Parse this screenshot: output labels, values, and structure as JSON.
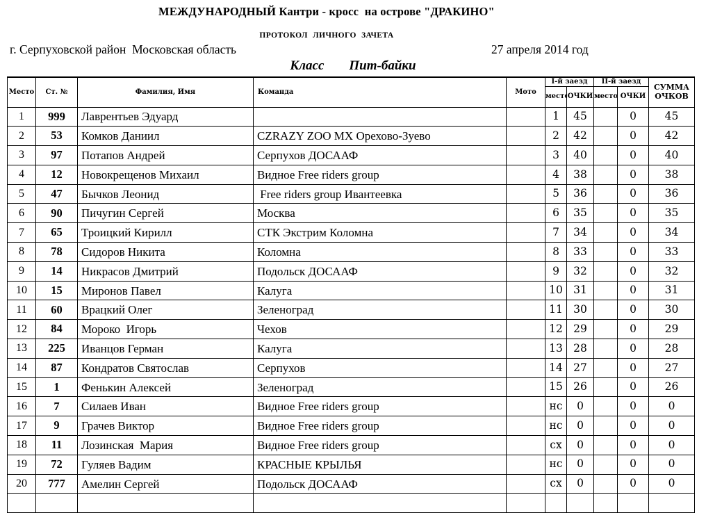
{
  "colors": {
    "text": "#000000",
    "border": "#000000",
    "background": "#ffffff"
  },
  "header": {
    "title": "МЕЖДУНАРОДНЫЙ Кантри - кросс  на острове \"ДРАКИНО\"",
    "subtitle": "ПРОТОКОЛ ЛИЧНОГО ЗАЧЕТА",
    "location": "г. Серпуховской район  Московская область",
    "date": "27 апреля 2014 год",
    "class_label": "Класс",
    "class_value": "Пит-байки"
  },
  "table": {
    "columns": {
      "place": "Место",
      "start_no": "Ст. №",
      "name": "Фамилия, Имя",
      "team": "Команда",
      "moto": "Мото",
      "race1": "I-й заезд",
      "race2": "II-й заезд",
      "sub_place": "место",
      "sub_points": "ОЧКИ",
      "total": "СУММА ОЧКОВ"
    },
    "rows": [
      {
        "place": "1",
        "start_no": "999",
        "name": "Лаврентьев Эдуард",
        "team": "",
        "moto": "",
        "r1_place": "1",
        "r1_points": "45",
        "r2_place": "",
        "r2_points": "0",
        "total": "45"
      },
      {
        "place": "2",
        "start_no": "53",
        "name": "Комков Даниил",
        "team": "CZRAZY ZOO MX Орехово-Зуево",
        "moto": "",
        "r1_place": "2",
        "r1_points": "42",
        "r2_place": "",
        "r2_points": "0",
        "total": "42"
      },
      {
        "place": "3",
        "start_no": "97",
        "name": "Потапов Андрей",
        "team": "Серпухов ДОСААФ",
        "moto": "",
        "r1_place": "3",
        "r1_points": "40",
        "r2_place": "",
        "r2_points": "0",
        "total": "40"
      },
      {
        "place": "4",
        "start_no": "12",
        "name": "Новокрещенов Михаил",
        "team": "Видное Free riders group",
        "moto": "",
        "r1_place": "4",
        "r1_points": "38",
        "r2_place": "",
        "r2_points": "0",
        "total": "38"
      },
      {
        "place": "5",
        "start_no": "47",
        "name": "Бычков Леонид",
        "team": " Free riders group Ивантеевка",
        "moto": "",
        "r1_place": "5",
        "r1_points": "36",
        "r2_place": "",
        "r2_points": "0",
        "total": "36"
      },
      {
        "place": "6",
        "start_no": "90",
        "name": "Пичугин Сергей",
        "team": "Москва",
        "moto": "",
        "r1_place": "6",
        "r1_points": "35",
        "r2_place": "",
        "r2_points": "0",
        "total": "35"
      },
      {
        "place": "7",
        "start_no": "65",
        "name": "Троицкий Кирилл",
        "team": "СТК Экстрим Коломна",
        "moto": "",
        "r1_place": "7",
        "r1_points": "34",
        "r2_place": "",
        "r2_points": "0",
        "total": "34"
      },
      {
        "place": "8",
        "start_no": "78",
        "name": "Сидоров Никита",
        "team": "Коломна",
        "moto": "",
        "r1_place": "8",
        "r1_points": "33",
        "r2_place": "",
        "r2_points": "0",
        "total": "33"
      },
      {
        "place": "9",
        "start_no": "14",
        "name": "Никрасов Дмитрий",
        "team": "Подольск ДОСААФ",
        "moto": "",
        "r1_place": "9",
        "r1_points": "32",
        "r2_place": "",
        "r2_points": "0",
        "total": "32"
      },
      {
        "place": "10",
        "start_no": "15",
        "name": "Миронов Павел",
        "team": "Калуга",
        "moto": "",
        "r1_place": "10",
        "r1_points": "31",
        "r2_place": "",
        "r2_points": "0",
        "total": "31"
      },
      {
        "place": "11",
        "start_no": "60",
        "name": "Врацкий Олег",
        "team": "Зеленоград",
        "moto": "",
        "r1_place": "11",
        "r1_points": "30",
        "r2_place": "",
        "r2_points": "0",
        "total": "30"
      },
      {
        "place": "12",
        "start_no": "84",
        "name": "Мороко  Игорь",
        "team": "Чехов",
        "moto": "",
        "r1_place": "12",
        "r1_points": "29",
        "r2_place": "",
        "r2_points": "0",
        "total": "29"
      },
      {
        "place": "13",
        "start_no": "225",
        "name": "Иванцов Герман",
        "team": "Калуга",
        "moto": "",
        "r1_place": "13",
        "r1_points": "28",
        "r2_place": "",
        "r2_points": "0",
        "total": "28"
      },
      {
        "place": "14",
        "start_no": "87",
        "name": "Кондратов Святослав",
        "team": "Серпухов",
        "moto": "",
        "r1_place": "14",
        "r1_points": "27",
        "r2_place": "",
        "r2_points": "0",
        "total": "27"
      },
      {
        "place": "15",
        "start_no": "1",
        "name": "Фенькин Алексей",
        "team": "Зеленоград",
        "moto": "",
        "r1_place": "15",
        "r1_points": "26",
        "r2_place": "",
        "r2_points": "0",
        "total": "26"
      },
      {
        "place": "16",
        "start_no": "7",
        "name": "Силаев Иван",
        "team": "Видное Free riders group",
        "moto": "",
        "r1_place": "нс",
        "r1_points": "0",
        "r2_place": "",
        "r2_points": "0",
        "total": "0"
      },
      {
        "place": "17",
        "start_no": "9",
        "name": "Грачев Виктор",
        "team": "Видное Free riders group",
        "moto": "",
        "r1_place": "нс",
        "r1_points": "0",
        "r2_place": "",
        "r2_points": "0",
        "total": "0"
      },
      {
        "place": "18",
        "start_no": "11",
        "name": "Лозинская  Мария",
        "team": "Видное Free riders group",
        "moto": "",
        "r1_place": "сх",
        "r1_points": "0",
        "r2_place": "",
        "r2_points": "0",
        "total": "0"
      },
      {
        "place": "19",
        "start_no": "72",
        "name": "Гуляев Вадим",
        "team": "КРАСНЫЕ КРЫЛЬЯ",
        "moto": "",
        "r1_place": "нс",
        "r1_points": "0",
        "r2_place": "",
        "r2_points": "0",
        "total": "0"
      },
      {
        "place": "20",
        "start_no": "777",
        "name": "Амелин Сергей",
        "team": "Подольск ДОСААФ",
        "moto": "",
        "r1_place": "сх",
        "r1_points": "0",
        "r2_place": "",
        "r2_points": "0",
        "total": "0"
      }
    ]
  }
}
